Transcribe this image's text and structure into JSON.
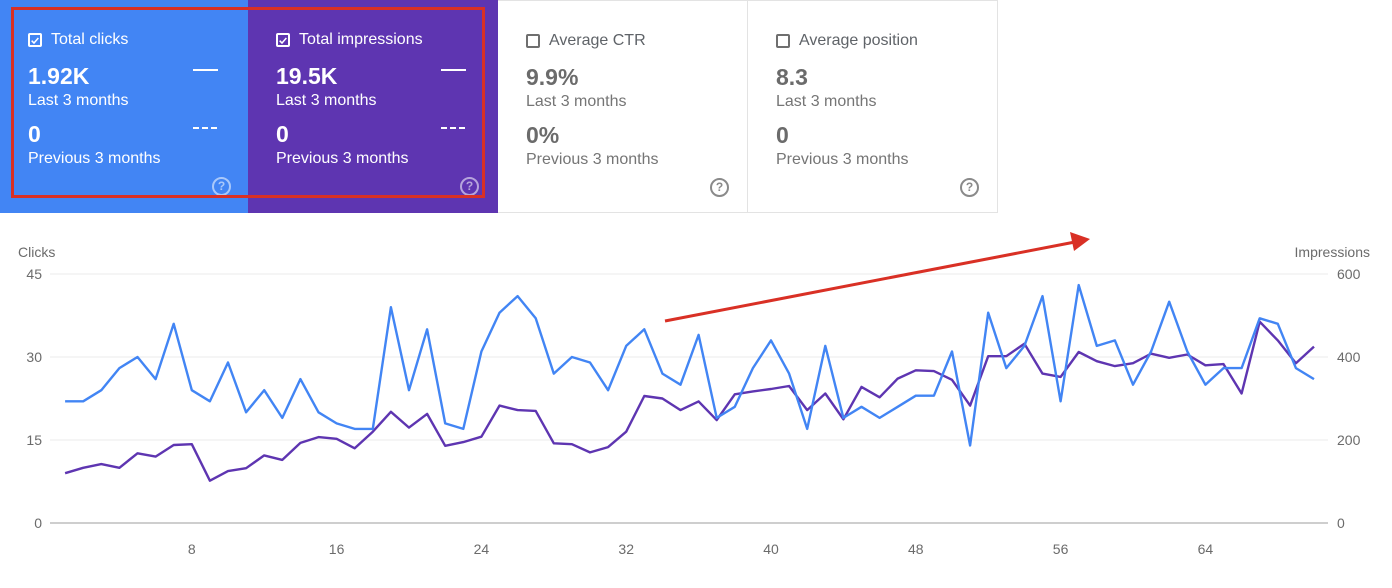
{
  "cards": [
    {
      "id": "clicks",
      "label": "Total clicks",
      "checked": true,
      "value": "1.92K",
      "period": "Last 3 months",
      "prev_value": "0",
      "prev_period": "Previous 3 months",
      "color": "#4285f4"
    },
    {
      "id": "impr",
      "label": "Total impressions",
      "checked": true,
      "value": "19.5K",
      "period": "Last 3 months",
      "prev_value": "0",
      "prev_period": "Previous 3 months",
      "color": "#5e35b1"
    },
    {
      "id": "ctr",
      "label": "Average CTR",
      "checked": false,
      "value": "9.9%",
      "period": "Last 3 months",
      "prev_value": "0%",
      "prev_period": "Previous 3 months"
    },
    {
      "id": "pos",
      "label": "Average position",
      "checked": false,
      "value": "8.3",
      "period": "Last 3 months",
      "prev_value": "0",
      "prev_period": "Previous 3 months"
    }
  ],
  "help_glyph": "?",
  "chart_data": {
    "type": "line",
    "ylabel_left": "Clicks",
    "ylabel_right": "Impressions",
    "ylim_left": [
      0,
      45
    ],
    "ylim_right": [
      0,
      600
    ],
    "yticks_left": [
      "0",
      "15",
      "30",
      "45"
    ],
    "yticks_right": [
      "0",
      "200",
      "400",
      "600"
    ],
    "xticks": [
      "8",
      "16",
      "24",
      "32",
      "40",
      "48",
      "56",
      "64"
    ],
    "x": [
      1,
      2,
      3,
      4,
      5,
      6,
      7,
      8,
      9,
      10,
      11,
      12,
      13,
      14,
      15,
      16,
      17,
      18,
      19,
      20,
      21,
      22,
      23,
      24,
      25,
      26,
      27,
      28,
      29,
      30,
      31,
      32,
      33,
      34,
      35,
      36,
      37,
      38,
      39,
      40,
      41,
      42,
      43,
      44,
      45,
      46,
      47,
      48,
      49,
      50,
      51,
      52,
      53,
      54,
      55,
      56,
      57,
      58,
      59,
      60,
      61,
      62,
      63,
      64,
      65,
      66,
      67,
      68,
      69,
      70
    ],
    "grid": true,
    "series": [
      {
        "axis": "left",
        "color": "#4285f4",
        "values": [
          22,
          22,
          24,
          28,
          30,
          26,
          36,
          24,
          22,
          29,
          20,
          24,
          19,
          26,
          20,
          18,
          17,
          17,
          39,
          24,
          35,
          18,
          17,
          31,
          38,
          41,
          37,
          27,
          30,
          29,
          24,
          32,
          35,
          27,
          25,
          34,
          19,
          21,
          28,
          33,
          27,
          17,
          32,
          19,
          21,
          19,
          21,
          23,
          23,
          31,
          14,
          38,
          28,
          32,
          41,
          22,
          43,
          32,
          33,
          25,
          31,
          40,
          31,
          25,
          28,
          28,
          37,
          36,
          28,
          26
        ]
      },
      {
        "axis": "right",
        "color": "#5e35b1",
        "values": [
          120,
          133,
          142,
          133,
          168,
          160,
          188,
          190,
          102,
          125,
          132,
          163,
          152,
          193,
          207,
          203,
          180,
          220,
          268,
          230,
          263,
          186,
          195,
          208,
          283,
          272,
          270,
          192,
          190,
          170,
          183,
          220,
          306,
          300,
          272,
          293,
          248,
          310,
          317,
          323,
          330,
          272,
          312,
          250,
          328,
          303,
          348,
          368,
          366,
          345,
          283,
          402,
          402,
          432,
          360,
          352,
          412,
          390,
          378,
          385,
          408,
          398,
          406,
          380,
          383,
          312,
          485,
          440,
          385,
          425
        ]
      }
    ]
  }
}
